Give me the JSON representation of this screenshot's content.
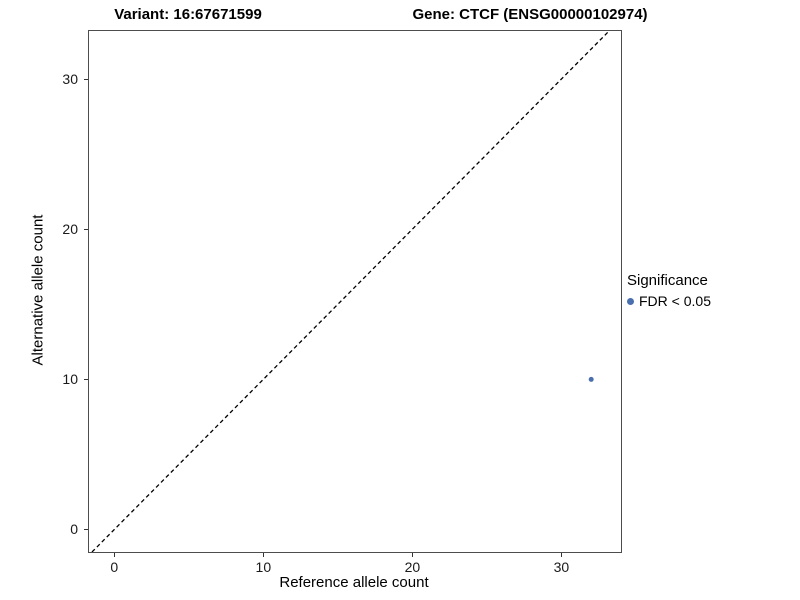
{
  "titles": {
    "variant": "Variant: 16:67671599",
    "gene": "Gene: CTCF (ENSG00000102974)"
  },
  "chart_data": {
    "type": "scatter",
    "title": "Variant: 16:67671599 | Gene: CTCF (ENSG00000102974)",
    "xlabel": "Reference allele count",
    "ylabel": "Alternative allele count",
    "xlim": [
      -1.7,
      34.0
    ],
    "ylim": [
      -1.5,
      33.2
    ],
    "xticks": [
      0,
      10,
      20,
      30
    ],
    "yticks": [
      0,
      10,
      20,
      30
    ],
    "grid": false,
    "points": [
      {
        "x": 32,
        "y": 10,
        "series": "FDR < 0.05"
      }
    ],
    "point_color": "#4a6fae",
    "point_radius": 2.5,
    "reference_line": {
      "kind": "y=x",
      "style": "dashed",
      "color": "#000000"
    },
    "legend": {
      "position": "right",
      "title": "Significance",
      "entries": [
        {
          "label": "FDR < 0.05",
          "color": "#4a6fae"
        }
      ]
    }
  }
}
